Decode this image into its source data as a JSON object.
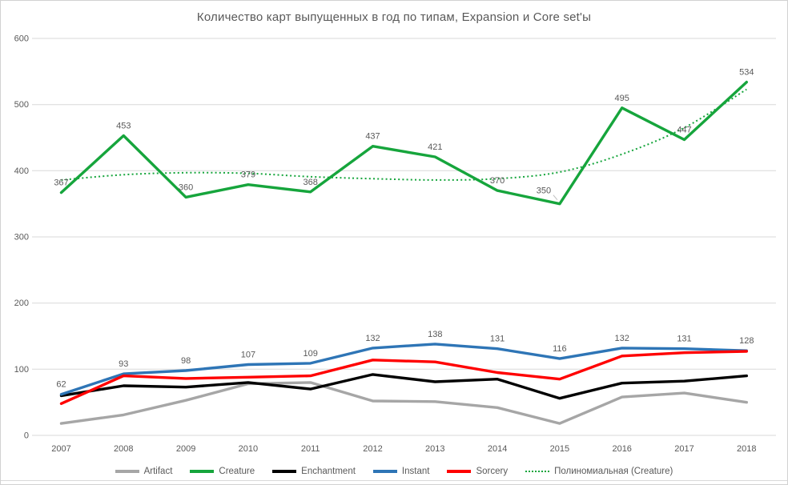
{
  "title": "Количество карт выпущенных в год по типам, Expansion и Core set'ы",
  "colors": {
    "grid": "#d9d9d9",
    "text": "#595959",
    "artifact": "#a6a6a6",
    "creature": "#16a53c",
    "enchantment": "#000000",
    "instant": "#2e75b6",
    "sorcery": "#ff0000",
    "trendline": "#16a53c"
  },
  "chart_data": {
    "type": "line",
    "title": "Количество карт выпущенных в год по типам, Expansion и Core set'ы",
    "xlabel": "",
    "ylabel": "",
    "ylim": [
      0,
      600
    ],
    "yticks": [
      0,
      100,
      200,
      300,
      400,
      500,
      600
    ],
    "grid": true,
    "legend_position": "bottom",
    "categories": [
      "2007",
      "2008",
      "2009",
      "2010",
      "2011",
      "2012",
      "2013",
      "2014",
      "2015",
      "2016",
      "2017",
      "2018"
    ],
    "series": [
      {
        "key": "artifact",
        "name": "Artifact",
        "color": "#a6a6a6",
        "labeled": false,
        "values": [
          18,
          31,
          53,
          78,
          80,
          52,
          51,
          42,
          18,
          58,
          64,
          50
        ]
      },
      {
        "key": "creature",
        "name": "Creature",
        "color": "#16a53c",
        "labeled": true,
        "values": [
          367,
          453,
          360,
          379,
          368,
          437,
          421,
          370,
          350,
          495,
          447,
          534
        ],
        "label_offsets": {
          "8": [
            -20,
            -4
          ]
        }
      },
      {
        "key": "enchantment",
        "name": "Enchantment",
        "color": "#000000",
        "labeled": false,
        "values": [
          60,
          75,
          73,
          80,
          70,
          92,
          81,
          85,
          56,
          79,
          82,
          90
        ]
      },
      {
        "key": "instant",
        "name": "Instant",
        "color": "#2e75b6",
        "labeled": true,
        "values": [
          62,
          93,
          98,
          107,
          109,
          132,
          138,
          131,
          116,
          132,
          131,
          128
        ]
      },
      {
        "key": "sorcery",
        "name": "Sorcery",
        "color": "#ff0000",
        "labeled": false,
        "values": [
          48,
          90,
          86,
          88,
          90,
          114,
          111,
          95,
          85,
          120,
          125,
          127
        ]
      }
    ],
    "trendline": {
      "key": "polynomial-creature",
      "name": "Полиномиальная (Creature)",
      "color": "#16a53c",
      "style": "dotted",
      "values": [
        386,
        394,
        397,
        396,
        391,
        388,
        386,
        388,
        398,
        425,
        465,
        523
      ]
    }
  }
}
